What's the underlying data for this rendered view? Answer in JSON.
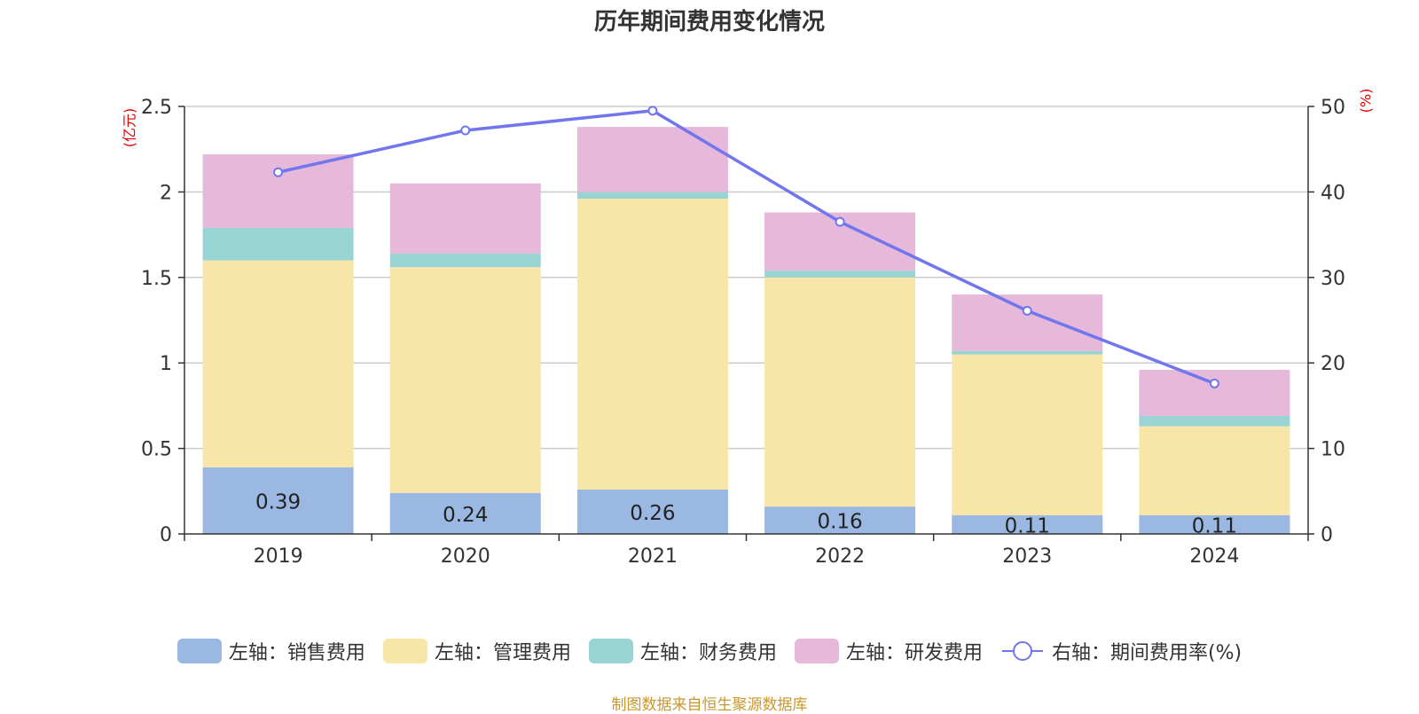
{
  "chart_data": {
    "type": "bar",
    "title": "历年期间费用变化情况",
    "categories": [
      "2019",
      "2020",
      "2021",
      "2022",
      "2023",
      "2024"
    ],
    "series": [
      {
        "name": "左轴：销售费用",
        "axis": "left",
        "color": "#9bb8e2",
        "values": [
          0.39,
          0.24,
          0.26,
          0.16,
          0.11,
          0.11
        ]
      },
      {
        "name": "左轴：管理费用",
        "axis": "left",
        "color": "#f8e6a8",
        "values": [
          1.21,
          1.32,
          1.7,
          1.34,
          0.94,
          0.52
        ]
      },
      {
        "name": "左轴：财务费用",
        "axis": "left",
        "color": "#98d4d4",
        "values": [
          0.19,
          0.08,
          0.04,
          0.04,
          0.02,
          0.06
        ]
      },
      {
        "name": "左轴：研发费用",
        "axis": "left",
        "color": "#e6b8da",
        "values": [
          0.43,
          0.41,
          0.38,
          0.34,
          0.33,
          0.27
        ]
      },
      {
        "name": "右轴：期间费用率(%)",
        "axis": "right",
        "type": "line",
        "color": "#7176ee",
        "values": [
          42.3,
          47.2,
          49.5,
          36.5,
          26.1,
          17.6
        ]
      }
    ],
    "bar_labels": [
      "0.39",
      "0.24",
      "0.26",
      "0.16",
      "0.11",
      "0.11"
    ],
    "left_axis": {
      "unit": "(亿元)",
      "ylim": [
        0,
        2.5
      ],
      "ticks": [
        "0",
        "0.5",
        "1",
        "1.5",
        "2",
        "2.5"
      ]
    },
    "right_axis": {
      "unit": "(%)",
      "ylim": [
        0,
        50
      ],
      "ticks": [
        "0",
        "10",
        "20",
        "30",
        "40",
        "50"
      ]
    },
    "grid": true,
    "legend_position": "bottom",
    "source": "制图数据来自恒生聚源数据库"
  }
}
